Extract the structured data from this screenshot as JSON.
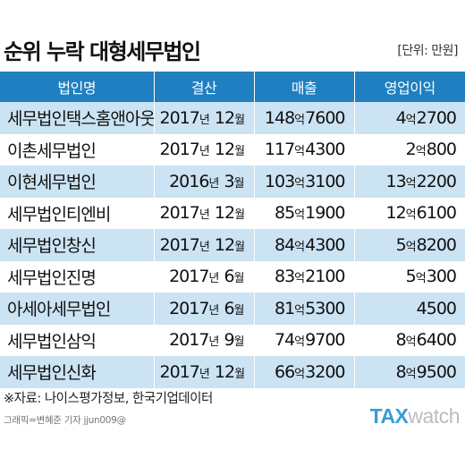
{
  "title": "순위 누락 대형세무법인",
  "unit": "[단위: 만원]",
  "source": "※자료: 나이스평가정보, 한국기업데이터",
  "credit": "그래픽=변혜준 기자 jjun009@",
  "logo": {
    "part1": "TAX",
    "part2": "watch"
  },
  "colors": {
    "header": "#1f7fc0",
    "stripe": "#cbe3f3",
    "logo_accent": "#3a9bd8"
  },
  "chart_data": {
    "type": "table",
    "columns": [
      "법인명",
      "결산",
      "매출",
      "영업이익"
    ],
    "rows": [
      {
        "name": "세무법인택스홈앤아웃",
        "settlement": {
          "year": "2017",
          "y_unit": "년",
          "month": "12",
          "m_unit": "월"
        },
        "revenue": {
          "eok": "148",
          "unit": "억",
          "man": "7600"
        },
        "profit": {
          "eok": "4",
          "unit": "억",
          "man": "2700"
        }
      },
      {
        "name": "이촌세무법인",
        "settlement": {
          "year": "2017",
          "y_unit": "년",
          "month": "12",
          "m_unit": "월"
        },
        "revenue": {
          "eok": "117",
          "unit": "억",
          "man": "4300"
        },
        "profit": {
          "eok": "2",
          "unit": "억",
          "man": "800"
        }
      },
      {
        "name": "이현세무법인",
        "settlement": {
          "year": "2016",
          "y_unit": "년",
          "month": "3",
          "m_unit": "월"
        },
        "revenue": {
          "eok": "103",
          "unit": "억",
          "man": "3100"
        },
        "profit": {
          "eok": "13",
          "unit": "억",
          "man": "2200"
        }
      },
      {
        "name": "세무법인티엔비",
        "settlement": {
          "year": "2017",
          "y_unit": "년",
          "month": "12",
          "m_unit": "월"
        },
        "revenue": {
          "eok": "85",
          "unit": "억",
          "man": "1900"
        },
        "profit": {
          "eok": "12",
          "unit": "억",
          "man": "6100"
        }
      },
      {
        "name": "세무법인창신",
        "settlement": {
          "year": "2017",
          "y_unit": "년",
          "month": "12",
          "m_unit": "월"
        },
        "revenue": {
          "eok": "84",
          "unit": "억",
          "man": "4300"
        },
        "profit": {
          "eok": "5",
          "unit": "억",
          "man": "8200"
        }
      },
      {
        "name": "세무법인진명",
        "settlement": {
          "year": "2017",
          "y_unit": "년",
          "month": "6",
          "m_unit": "월"
        },
        "revenue": {
          "eok": "83",
          "unit": "억",
          "man": "2100"
        },
        "profit": {
          "eok": "5",
          "unit": "억",
          "man": "300"
        }
      },
      {
        "name": "아세아세무법인",
        "settlement": {
          "year": "2017",
          "y_unit": "년",
          "month": "6",
          "m_unit": "월"
        },
        "revenue": {
          "eok": "81",
          "unit": "억",
          "man": "5300"
        },
        "profit": {
          "eok": "",
          "unit": "",
          "man": "4500"
        }
      },
      {
        "name": "세무법인삼익",
        "settlement": {
          "year": "2017",
          "y_unit": "년",
          "month": "9",
          "m_unit": "월"
        },
        "revenue": {
          "eok": "74",
          "unit": "억",
          "man": "9700"
        },
        "profit": {
          "eok": "8",
          "unit": "억",
          "man": "6400"
        }
      },
      {
        "name": "세무법인신화",
        "settlement": {
          "year": "2017",
          "y_unit": "년",
          "month": "12",
          "m_unit": "월"
        },
        "revenue": {
          "eok": "66",
          "unit": "억",
          "man": "3200"
        },
        "profit": {
          "eok": "8",
          "unit": "억",
          "man": "9500"
        }
      }
    ]
  }
}
